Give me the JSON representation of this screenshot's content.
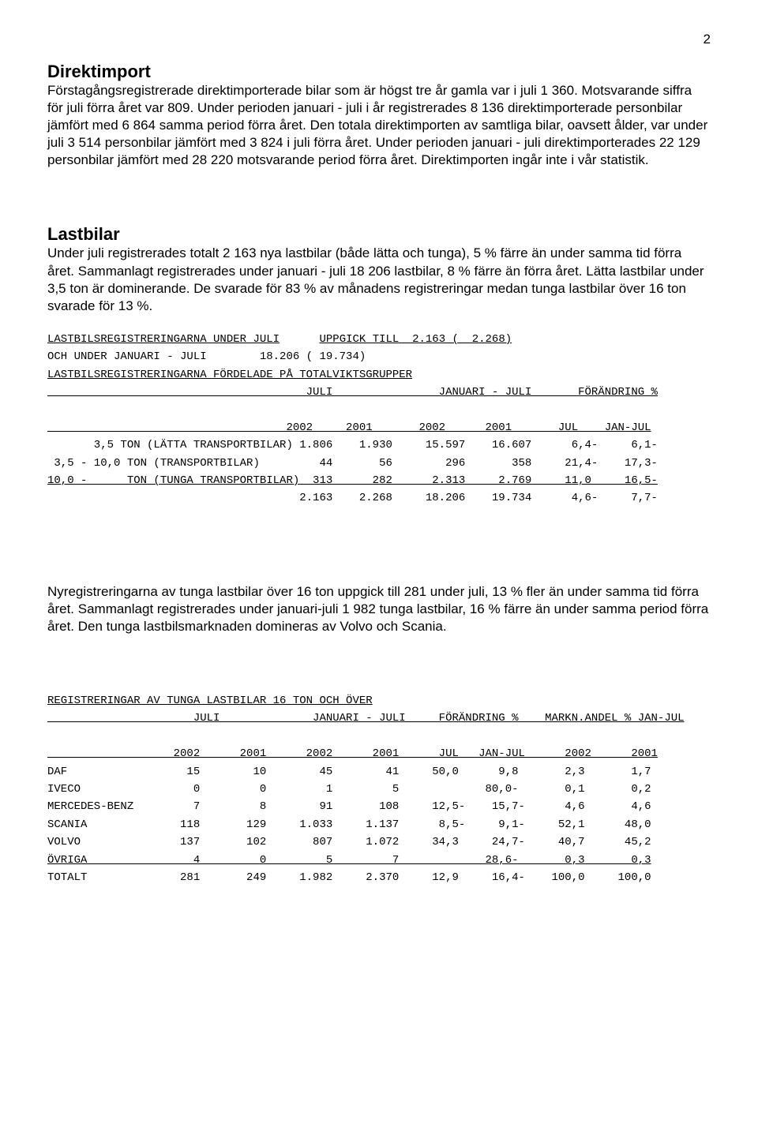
{
  "page_number": "2",
  "section1": {
    "title": "Direktimport",
    "para": "Förstagångsregistrerade direktimporterade bilar som är högst tre år gamla var i juli 1 360. Motsvarande siffra för juli förra året var 809. Under perioden januari - juli i år registrerades 8 136 direktimporterade personbilar jämfört med 6 864 samma period förra året. Den totala direktimporten av samtliga bilar, oavsett ålder, var under juli 3 514 personbilar jämfört med 3 824 i juli förra året. Under perioden januari - juli direktimporterades 22 129 personbilar jämfört med 28 220 motsvarande period förra året. Direktimporten ingår inte i vår statistik."
  },
  "section2": {
    "title": "Lastbilar",
    "para": "Under juli registrerades totalt 2 163 nya lastbilar (både lätta och tunga), 5 % färre än under samma tid förra året. Sammanlagt registrerades under januari - juli 18 206 lastbilar, 8 % färre än förra året. Lätta lastbilar under 3,5 ton är dominerande. De svarade för 83 % av månadens registreringar medan tunga lastbilar över 16 ton svarade för 13 %."
  },
  "table1": {
    "line_header_a": "LASTBILSREGISTRERINGARNA UNDER JULI",
    "line_header_b": "UPPGICK TILL  2.163 (  2.268)",
    "line_sub": "OCH UNDER JANUARI - JULI        18.206 ( 19.734)",
    "line_distrib": "LASTBILSREGISTRERINGARNA FÖRDELADE PÅ TOTALVIKTSGRUPPER",
    "col_header1": "                                       JULI                JANUARI - JULI       FÖRÄNDRING %",
    "col_header2": "                                    2002     2001       2002      2001       JUL    JAN-JUL",
    "row1": "       3,5 TON (LÄTTA TRANSPORTBILAR) 1.806    1.930     15.597    16.607      6,4-     6,1-",
    "row2": " 3,5 - 10,0 TON (TRANSPORTBILAR)         44       56        296       358     21,4-    17,3-",
    "row3": "10,0 -      TON (TUNGA TRANSPORTBILAR)  313      282      2.313     2.769     11,0     16,5-",
    "row_total": "                                      2.163    2.268     18.206    19.734      4,6-     7,7-"
  },
  "section3": {
    "para": "Nyregistreringarna av tunga lastbilar över 16 ton uppgick till 281 under juli, 13 % fler än under samma tid förra året. Sammanlagt registrerades under januari-juli 1 982 tunga lastbilar, 16 % färre än under samma period förra året. Den tunga lastbilsmarknaden domineras av Volvo och Scania."
  },
  "table2": {
    "title": "REGISTRERINGAR AV TUNGA LASTBILAR 16 TON OCH ÖVER",
    "col_header1": "                      JULI              JANUARI - JULI     FÖRÄNDRING %    MARKN.ANDEL % JAN-JUL",
    "col_header2": "                   2002      2001      2002      2001      JUL   JAN-JUL      2002      2001",
    "rows": [
      "DAF                  15        10        45        41     50,0      9,8       2,3       1,7",
      "IVECO                 0         0         1         5             80,0-       0,1       0,2",
      "MERCEDES-BENZ         7         8        91       108     12,5-    15,7-      4,6       4,6",
      "SCANIA              118       129     1.033     1.137      8,5-     9,1-     52,1      48,0",
      "VOLVO               137       102       807     1.072     34,3     24,7-     40,7      45,2",
      "ÖVRIGA                4         0         5         7             28,6-       0,3       0,3",
      "TOTALT              281       249     1.982     2.370     12,9     16,4-    100,0     100,0"
    ]
  }
}
